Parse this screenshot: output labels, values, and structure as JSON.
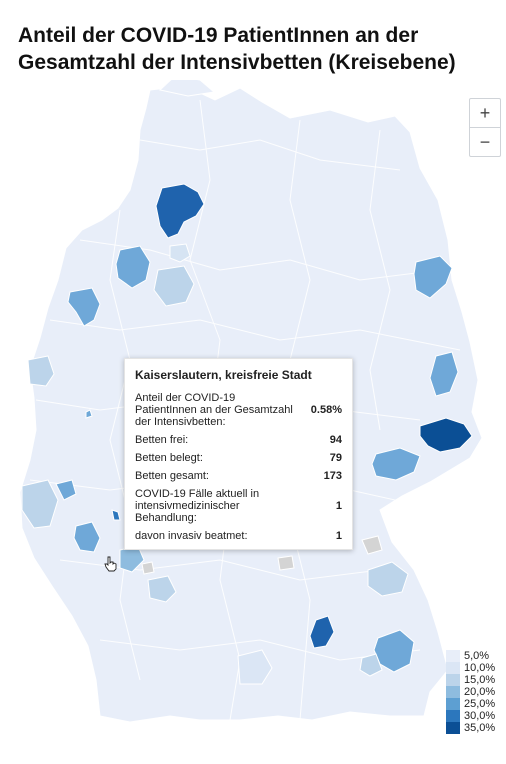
{
  "title": "Anteil der COVID-19 PatientInnen an der Gesamtzahl der Intensivbetten (Kreisebene)",
  "zoom": {
    "in_label": "+",
    "out_label": "−"
  },
  "tooltip": {
    "region": "Kaiserslautern, kreisfreie Stadt",
    "rows": [
      {
        "label": "Anteil der COVID-19 PatientInnen an der Gesamtzahl der Intensivbetten:",
        "value": "0.58%"
      },
      {
        "label": "Betten frei:",
        "value": "94"
      },
      {
        "label": "Betten belegt:",
        "value": "79"
      },
      {
        "label": "Betten gesamt:",
        "value": "173"
      },
      {
        "label": "COVID-19 Fälle aktuell in intensivmedizinischer Behandlung:",
        "value": "1"
      },
      {
        "label": "davon invasiv beatmet:",
        "value": "1"
      }
    ]
  },
  "legend": {
    "items": [
      {
        "label": "5,0%",
        "color": "#e8eef9"
      },
      {
        "label": "10,0%",
        "color": "#dbe6f5"
      },
      {
        "label": "15,0%",
        "color": "#bcd4ea"
      },
      {
        "label": "20,0%",
        "color": "#8ebcdf"
      },
      {
        "label": "25,0%",
        "color": "#5d9fd2"
      },
      {
        "label": "30,0%",
        "color": "#2c77bd"
      },
      {
        "label": "35,0%",
        "color": "#0b4f95"
      }
    ]
  },
  "colors": {
    "base": "#e8eef9",
    "border": "#ffffff",
    "no_data": "#d4d4d4"
  }
}
